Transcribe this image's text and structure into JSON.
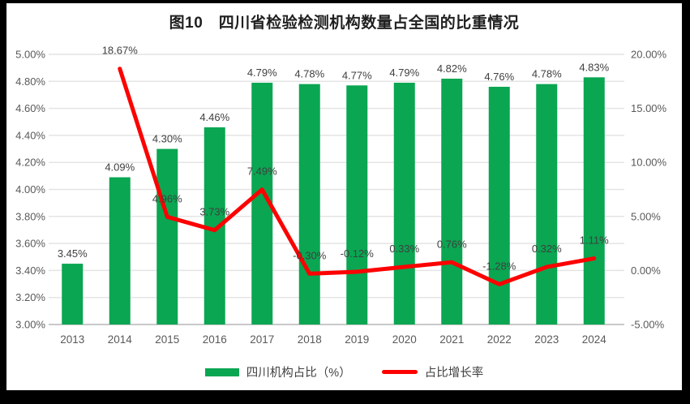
{
  "chart_data": {
    "type": "bar+line",
    "title": "图10　四川省检验检测机构数量占全国的比重情况",
    "categories": [
      "2013",
      "2014",
      "2015",
      "2016",
      "2017",
      "2018",
      "2019",
      "2020",
      "2021",
      "2022",
      "2023",
      "2024"
    ],
    "series": [
      {
        "name": "四川机构占比（%）",
        "type": "bar",
        "axis": "left",
        "values": [
          3.45,
          4.09,
          4.3,
          4.46,
          4.79,
          4.78,
          4.77,
          4.79,
          4.82,
          4.76,
          4.78,
          4.83
        ],
        "labels": [
          "3.45%",
          "4.09%",
          "4.30%",
          "4.46%",
          "4.79%",
          "4.78%",
          "4.77%",
          "4.79%",
          "4.82%",
          "4.76%",
          "4.78%",
          "4.83%"
        ]
      },
      {
        "name": "占比增长率",
        "type": "line",
        "axis": "right",
        "values": [
          null,
          18.67,
          4.96,
          3.73,
          7.49,
          -0.3,
          -0.12,
          0.33,
          0.76,
          -1.28,
          0.32,
          1.11
        ],
        "labels": [
          "",
          "18.67%",
          "4.96%",
          "3.73%",
          "7.49%",
          "-0.30%",
          "-0.12%",
          "0.33%",
          "0.76%",
          "-1.28%",
          "0.32%",
          "1.11%"
        ]
      }
    ],
    "left_axis": {
      "min": 3.0,
      "max": 5.0,
      "step": 0.2,
      "ticks": [
        "5.00%",
        "4.80%",
        "4.60%",
        "4.40%",
        "4.20%",
        "4.00%",
        "3.80%",
        "3.60%",
        "3.40%",
        "3.20%",
        "3.00%"
      ]
    },
    "right_axis": {
      "min": -5.0,
      "max": 20.0,
      "step": 5.0,
      "ticks": [
        "20.00%",
        "15.00%",
        "10.00%",
        "5.00%",
        "0.00%",
        "-5.00%"
      ]
    },
    "grid": true,
    "legend_position": "bottom"
  },
  "legend": {
    "bar_label": "四川机构占比（%）",
    "line_label": "占比增长率"
  },
  "colors": {
    "bar": "#0aa652",
    "line": "#fd0000",
    "grid": "#e4e4e4",
    "axis_line": "#c9c9c9",
    "axis_text": "#595959",
    "data_label_text": "#3f3f3f",
    "title_text": "#1f1f1f",
    "background": "#ffffff",
    "frame": "#000000"
  }
}
